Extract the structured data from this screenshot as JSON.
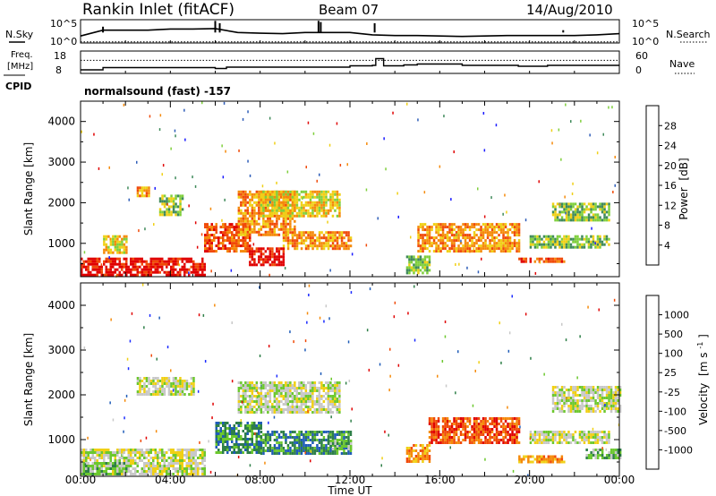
{
  "header": {
    "title": "Rankin Inlet (fitACF)",
    "beam": "Beam 07",
    "date": "14/Aug/2010",
    "cpid": "normalsound (fast) -157"
  },
  "labels": {
    "nsky": "N.Sky",
    "nsearch": "N.Search",
    "freq": "Freq.",
    "freq_unit": "[MHz]",
    "cpid": "CPID",
    "nave": "Nave",
    "tick_10e5": "10^5",
    "tick_10e0": "10^0",
    "freq_top": "18",
    "freq_bottom": "8",
    "nave_top": "60",
    "nave_bottom": "0"
  },
  "chart_data": [
    {
      "type": "line",
      "title": "N.Sky / N.Search",
      "yscale": "log",
      "y_tick_labels": [
        "10^5",
        "10^0"
      ],
      "x": [
        0,
        1,
        2,
        3,
        4,
        5,
        6,
        7,
        8,
        9,
        10,
        11,
        12,
        13,
        14,
        15,
        16,
        17,
        18,
        19,
        20,
        21,
        22,
        23,
        24
      ],
      "series": [
        {
          "name": "N.Sky",
          "values": [
            0.3,
            0.55,
            0.55,
            0.55,
            0.6,
            0.6,
            0.62,
            0.45,
            0.42,
            0.4,
            0.45,
            0.45,
            0.45,
            0.35,
            0.32,
            0.32,
            0.3,
            0.28,
            0.3,
            0.32,
            0.32,
            0.32,
            0.32,
            0.35,
            0.4
          ]
        },
        {
          "name": "N.Search",
          "values": [
            0.05,
            0.05,
            0.05,
            0.05,
            0.05,
            0.05,
            0.05,
            0.05,
            0.05,
            0.05,
            0.05,
            0.05,
            0.05,
            0.05,
            0.05,
            0.05,
            0.05,
            0.05,
            0.05,
            0.05,
            0.05,
            0.05,
            0.05,
            0.05,
            0.05
          ]
        }
      ],
      "xlim": [
        0,
        24
      ]
    },
    {
      "type": "line",
      "title": "Freq. / Nave",
      "y_left": {
        "label": "Freq. [MHz]",
        "ticks": [
          "18",
          "8"
        ]
      },
      "y_right": {
        "label": "Nave",
        "ticks": [
          "60",
          "0"
        ]
      },
      "freq_steps": [
        [
          0.0,
          9.6
        ],
        [
          1.0,
          10.6
        ],
        [
          3.0,
          10.6
        ],
        [
          6.0,
          10.2
        ],
        [
          6.5,
          10.8
        ],
        [
          11.0,
          10.8
        ],
        [
          12.0,
          11.4
        ],
        [
          13.0,
          11.6
        ],
        [
          13.15,
          14.6
        ],
        [
          13.5,
          11.4
        ],
        [
          14.4,
          11.8
        ],
        [
          15.0,
          12.2
        ],
        [
          17.0,
          11.6
        ],
        [
          19.5,
          11.2
        ],
        [
          20.8,
          11.6
        ],
        [
          22.0,
          11.6
        ],
        [
          24.0,
          11.6
        ]
      ],
      "nave_dotted_level": 35,
      "xlim": [
        0,
        24
      ]
    },
    {
      "type": "heatmap",
      "title": "Power",
      "xlabel": "",
      "ylabel": "Slant Range [km]",
      "colorbar_label": "Power [dB]",
      "colorbar_ticks": [
        4,
        8,
        12,
        16,
        20,
        24,
        28
      ],
      "colors": [
        "#1a1aff",
        "#2e5db8",
        "#3f8a5a",
        "#7fcf3c",
        "#f0d015",
        "#f58a0a",
        "#f04a08",
        "#e00000"
      ],
      "x_ticks": [
        "00:00",
        "04:00",
        "08:00",
        "12:00",
        "16:00",
        "20:00",
        "00:00"
      ],
      "y_ticks": [
        1000,
        2000,
        3000,
        4000
      ],
      "xlim": [
        0,
        24
      ],
      "ylim": [
        180,
        4500
      ],
      "regions": [
        {
          "t0": 0.0,
          "t1": 5.5,
          "r0": 200,
          "r1": 650,
          "level": 7
        },
        {
          "t0": 1.0,
          "t1": 2.0,
          "r0": 800,
          "r1": 1200,
          "level": 4
        },
        {
          "t0": 2.5,
          "t1": 3.0,
          "r0": 2200,
          "r1": 2400,
          "level": 5
        },
        {
          "t0": 3.5,
          "t1": 4.5,
          "r0": 1700,
          "r1": 2200,
          "level": 3
        },
        {
          "t0": 5.5,
          "t1": 7.5,
          "r0": 800,
          "r1": 1500,
          "level": 6
        },
        {
          "t0": 7.0,
          "t1": 9.5,
          "r0": 1200,
          "r1": 2300,
          "level": 5
        },
        {
          "t0": 8.0,
          "t1": 11.5,
          "r0": 1700,
          "r1": 2300,
          "level": 4
        },
        {
          "t0": 9.0,
          "t1": 12.0,
          "r0": 900,
          "r1": 1300,
          "level": 5
        },
        {
          "t0": 7.5,
          "t1": 9.0,
          "r0": 500,
          "r1": 900,
          "level": 7
        },
        {
          "t0": 14.5,
          "t1": 15.5,
          "r0": 300,
          "r1": 700,
          "level": 3
        },
        {
          "t0": 15.0,
          "t1": 19.5,
          "r0": 800,
          "r1": 1500,
          "level": 5
        },
        {
          "t0": 20.0,
          "t1": 23.5,
          "r0": 900,
          "r1": 1200,
          "level": 3
        },
        {
          "t0": 21.0,
          "t1": 23.5,
          "r0": 1600,
          "r1": 2000,
          "level": 3
        },
        {
          "t0": 19.5,
          "t1": 21.5,
          "r0": 550,
          "r1": 650,
          "level": 6
        }
      ]
    },
    {
      "type": "heatmap",
      "title": "Velocity",
      "xlabel": "Time UT",
      "ylabel": "Slant Range [km]",
      "colorbar_label": "Velocity [m s^-1]",
      "colorbar_ticks": [
        1000,
        500,
        100,
        25,
        -25,
        -100,
        -500,
        -1000
      ],
      "colors": [
        "#1a2aff",
        "#1f5cb8",
        "#2e7f48",
        "#6cc82e",
        "#c8c8c8",
        "#f0d015",
        "#f58a0a",
        "#f04a08",
        "#e00000"
      ],
      "x_ticks": [
        "00:00",
        "04:00",
        "08:00",
        "12:00",
        "16:00",
        "20:00",
        "00:00"
      ],
      "y_ticks": [
        1000,
        2000,
        3000,
        4000
      ],
      "xlim": [
        0,
        24
      ],
      "ylim": [
        180,
        4500
      ],
      "regions": [
        {
          "t0": 0.0,
          "t1": 5.5,
          "r0": 200,
          "r1": 800,
          "level": 4
        },
        {
          "t0": 0.0,
          "t1": 2.0,
          "r0": 200,
          "r1": 500,
          "level": 3
        },
        {
          "t0": 2.5,
          "t1": 5.0,
          "r0": 2000,
          "r1": 2400,
          "level": 4
        },
        {
          "t0": 6.0,
          "t1": 8.0,
          "r0": 700,
          "r1": 1400,
          "level": 2
        },
        {
          "t0": 7.0,
          "t1": 11.5,
          "r0": 1600,
          "r1": 2300,
          "level": 4
        },
        {
          "t0": 8.0,
          "t1": 12.0,
          "r0": 700,
          "r1": 1200,
          "level": 2
        },
        {
          "t0": 11.0,
          "t1": 12.0,
          "r0": 800,
          "r1": 1000,
          "level": 3
        },
        {
          "t0": 14.5,
          "t1": 15.5,
          "r0": 500,
          "r1": 900,
          "level": 6
        },
        {
          "t0": 15.5,
          "t1": 19.5,
          "r0": 900,
          "r1": 1500,
          "level": 7
        },
        {
          "t0": 19.5,
          "t1": 21.5,
          "r0": 500,
          "r1": 650,
          "level": 6
        },
        {
          "t0": 20.0,
          "t1": 23.5,
          "r0": 900,
          "r1": 1200,
          "level": 4
        },
        {
          "t0": 21.0,
          "t1": 24.0,
          "r0": 1600,
          "r1": 2200,
          "level": 4
        },
        {
          "t0": 22.5,
          "t1": 24.0,
          "r0": 600,
          "r1": 800,
          "level": 3
        }
      ]
    }
  ],
  "colorbars": {
    "power": {
      "label": "Power",
      "unit": "[dB]"
    },
    "velocity": {
      "label": "Velocity",
      "unit": "[m s",
      "unit_sup": "-1",
      "unit_end": "]"
    }
  },
  "axes": {
    "xlabel": "Time UT",
    "ylabel": "Slant Range [km]"
  }
}
